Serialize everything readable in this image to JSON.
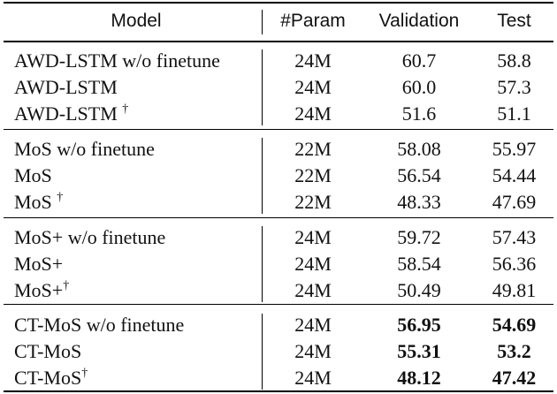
{
  "table": {
    "headers": {
      "model": "Model",
      "param": "#Param",
      "validation": "Validation",
      "test": "Test"
    },
    "groups": [
      {
        "rows": [
          {
            "model": "AWD-LSTM w/o finetune",
            "sup": "",
            "param": "24M",
            "validation": "60.7",
            "test": "58.8",
            "bold": false
          },
          {
            "model": "AWD-LSTM",
            "sup": "",
            "param": "24M",
            "validation": "60.0",
            "test": "57.3",
            "bold": false
          },
          {
            "model": "AWD-LSTM ",
            "sup": "†",
            "param": "24M",
            "validation": "51.6",
            "test": "51.1",
            "bold": false
          }
        ]
      },
      {
        "rows": [
          {
            "model": "MoS w/o finetune",
            "sup": "",
            "param": "22M",
            "validation": "58.08",
            "test": "55.97",
            "bold": false
          },
          {
            "model": "MoS",
            "sup": "",
            "param": "22M",
            "validation": "56.54",
            "test": "54.44",
            "bold": false
          },
          {
            "model": "MoS ",
            "sup": "†",
            "param": "22M",
            "validation": "48.33",
            "test": "47.69",
            "bold": false
          }
        ]
      },
      {
        "rows": [
          {
            "model": "MoS+ w/o finetune",
            "sup": "",
            "param": "24M",
            "validation": "59.72",
            "test": "57.43",
            "bold": false
          },
          {
            "model": "MoS+",
            "sup": "",
            "param": "24M",
            "validation": "58.54",
            "test": "56.36",
            "bold": false
          },
          {
            "model": "MoS+",
            "sup": "†",
            "param": "24M",
            "validation": "50.49",
            "test": "49.81",
            "bold": false
          }
        ]
      },
      {
        "rows": [
          {
            "model": "CT-MoS w/o finetune",
            "sup": "",
            "param": "24M",
            "validation": "56.95",
            "test": "54.69",
            "bold": true
          },
          {
            "model": "CT-MoS",
            "sup": "",
            "param": "24M",
            "validation": "55.31",
            "test": "53.2",
            "bold": true
          },
          {
            "model": "CT-MoS",
            "sup": "†",
            "param": "24M",
            "validation": "48.12",
            "test": "47.42",
            "bold": true
          }
        ]
      }
    ]
  }
}
